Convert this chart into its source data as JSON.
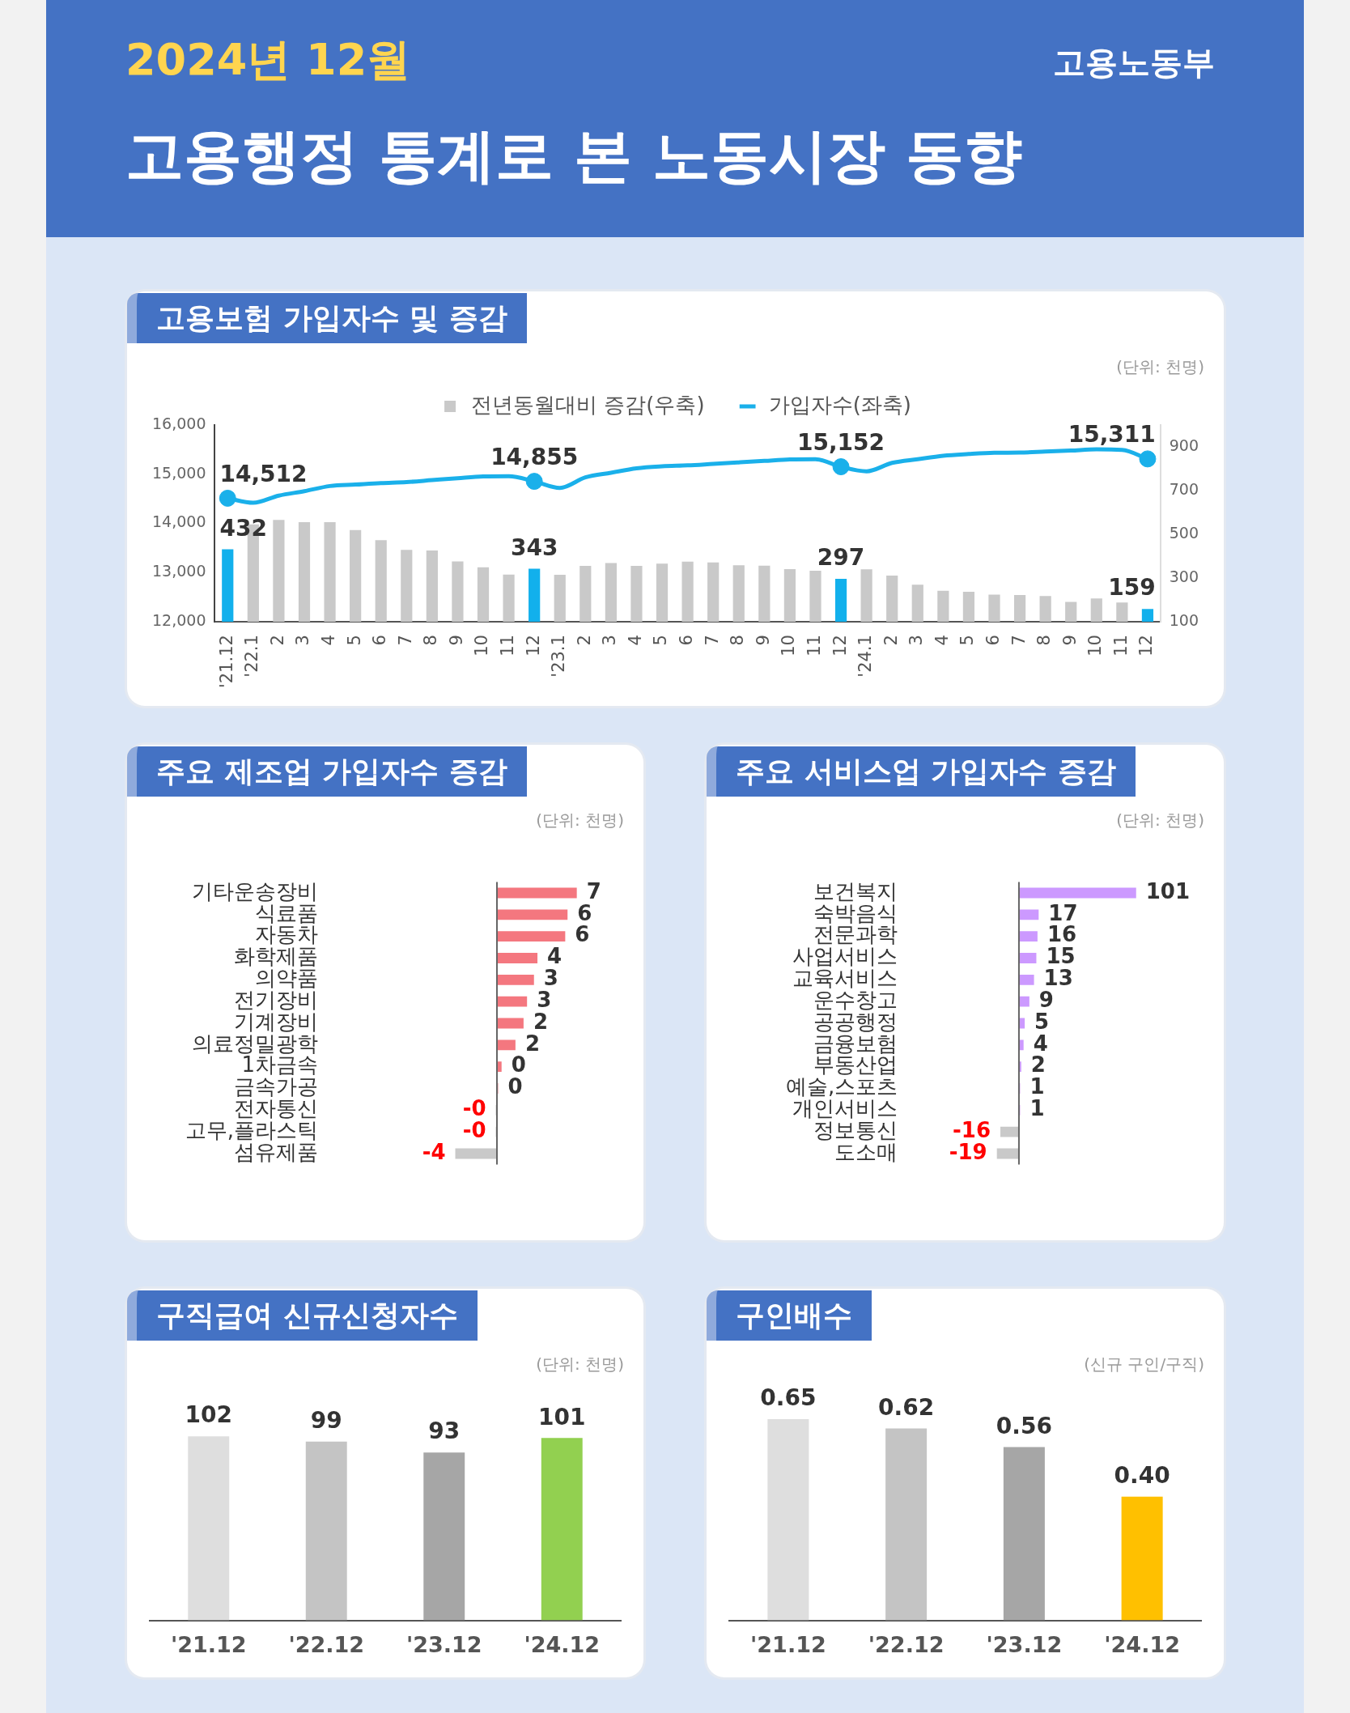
{
  "chart_data": [
    {
      "type": "other",
      "title": "고용행정 통계로 본 노동시장 동향",
      "subtitle": "2024년 12월",
      "annotations": [
        "고용노동부"
      ]
    },
    {
      "type": "bar",
      "title": "고용보험 가입자수 및 증감",
      "annotations": [
        "(단위: 천명)"
      ],
      "categories": [
        "'21.12",
        "'22.1",
        "2",
        "3",
        "4",
        "5",
        "6",
        "7",
        "8",
        "9",
        "10",
        "11",
        "12",
        "'23.1",
        "2",
        "3",
        "4",
        "5",
        "6",
        "7",
        "8",
        "9",
        "10",
        "11",
        "12",
        "'24.1",
        "2",
        "3",
        "4",
        "5",
        "6",
        "7",
        "8",
        "9",
        "10",
        "11",
        "12"
      ],
      "series": [
        {
          "name": "전년동월대비 증감(우축)",
          "type": "bar",
          "axis": "y2",
          "color": "#c9c9c9",
          "colors": [
            "#12b0ec",
            "#c9c9c9",
            "#c9c9c9",
            "#c9c9c9",
            "#c9c9c9",
            "#c9c9c9",
            "#c9c9c9",
            "#c9c9c9",
            "#c9c9c9",
            "#c9c9c9",
            "#c9c9c9",
            "#c9c9c9",
            "#12b0ec",
            "#c9c9c9",
            "#c9c9c9",
            "#c9c9c9",
            "#c9c9c9",
            "#c9c9c9",
            "#c9c9c9",
            "#c9c9c9",
            "#c9c9c9",
            "#c9c9c9",
            "#c9c9c9",
            "#c9c9c9",
            "#12b0ec",
            "#c9c9c9",
            "#c9c9c9",
            "#c9c9c9",
            "#c9c9c9",
            "#c9c9c9",
            "#c9c9c9",
            "#c9c9c9",
            "#c9c9c9",
            "#c9c9c9",
            "#c9c9c9",
            "#c9c9c9",
            "#12b0ec"
          ],
          "values": [
            432,
            546,
            566,
            556,
            556,
            520,
            473,
            429,
            426,
            376,
            349,
            316,
            343,
            315,
            356,
            369,
            356,
            366,
            375,
            372,
            359,
            357,
            341,
            334,
            297,
            340,
            311,
            270,
            242,
            237,
            224,
            223,
            218,
            191,
            207,
            188,
            159
          ],
          "value_labels": [
            "432",
            null,
            null,
            null,
            null,
            null,
            null,
            null,
            null,
            null,
            null,
            null,
            "343",
            null,
            null,
            null,
            null,
            null,
            null,
            null,
            null,
            null,
            null,
            null,
            "297",
            null,
            null,
            null,
            null,
            null,
            null,
            null,
            null,
            null,
            null,
            null,
            "159"
          ]
        },
        {
          "name": "가입자수(좌축)",
          "type": "line",
          "axis": "y",
          "color": "#1ab0ea",
          "marker": "none",
          "values": [
            14512,
            14420,
            14565,
            14655,
            14760,
            14790,
            14820,
            14840,
            14880,
            14920,
            14955,
            14960,
            14855,
            14720,
            14935,
            15030,
            15120,
            15160,
            15180,
            15210,
            15240,
            15270,
            15300,
            15305,
            15152,
            15060,
            15230,
            15305,
            15375,
            15410,
            15435,
            15440,
            15460,
            15480,
            15505,
            15495,
            15311
          ]
        },
        {
          "type": "scatter",
          "axis": "y",
          "color": "#1ab0ea",
          "marker": "circle",
          "values": [
            14512,
            null,
            null,
            null,
            null,
            null,
            null,
            null,
            null,
            null,
            null,
            null,
            14855,
            null,
            null,
            null,
            null,
            null,
            null,
            null,
            null,
            null,
            null,
            null,
            15152,
            null,
            null,
            null,
            null,
            null,
            null,
            null,
            null,
            null,
            null,
            null,
            15311
          ],
          "value_labels": [
            "14,512",
            null,
            null,
            null,
            null,
            null,
            null,
            null,
            null,
            null,
            null,
            null,
            "14,855",
            null,
            null,
            null,
            null,
            null,
            null,
            null,
            null,
            null,
            null,
            null,
            "15,152",
            null,
            null,
            null,
            null,
            null,
            null,
            null,
            null,
            null,
            null,
            null,
            "15,311"
          ]
        }
      ],
      "ylim": [
        12000,
        16000
      ],
      "yticks": [
        {
          "value": 12000,
          "label": "12,000"
        },
        {
          "value": 13000,
          "label": "13,000"
        },
        {
          "value": 14000,
          "label": "14,000"
        },
        {
          "value": 15000,
          "label": "15,000"
        },
        {
          "value": 16000,
          "label": "16,000"
        }
      ],
      "y2lim": [
        100,
        1000
      ],
      "y2ticks": [
        100,
        300,
        500,
        700,
        900
      ],
      "legend": "top"
    },
    {
      "type": "bar",
      "orientation": "horizontal",
      "title": "주요 제조업 가입자수 증감",
      "annotations": [
        "(단위: 천명)"
      ],
      "categories": [
        "기타운송장비",
        "식료품",
        "자동차",
        "화학제품",
        "의약품",
        "전기장비",
        "기계장비",
        "의료정밀광학",
        "1차금속",
        "금속가공",
        "전자통신",
        "고무,플라스틱",
        "섬유제품"
      ],
      "values": [
        6.9,
        6.1,
        5.9,
        3.5,
        3.2,
        2.6,
        2.3,
        1.6,
        0.4,
        0.1,
        -0.1,
        -0.1,
        -3.6
      ],
      "colors": [
        "#f4777f",
        "#f4777f",
        "#f4777f",
        "#f4777f",
        "#f4777f",
        "#f4777f",
        "#f4777f",
        "#f4777f",
        "#f4777f",
        "#f4777f",
        "#c9c9c9",
        "#c9c9c9",
        "#c9c9c9"
      ],
      "value_labels": [
        "7",
        "6",
        "6",
        "4",
        "3",
        "3",
        "2",
        "2",
        "0",
        "0",
        "-0",
        "-0",
        "-4"
      ]
    },
    {
      "type": "bar",
      "orientation": "horizontal",
      "title": "주요 서비스업 가입자수 증감",
      "annotations": [
        "(단위: 천명)"
      ],
      "categories": [
        "보건복지",
        "숙박음식",
        "전문과학",
        "사업서비스",
        "교육서비스",
        "운수창고",
        "공공행정",
        "금융보험",
        "부동산업",
        "예술,스포츠",
        "개인서비스",
        "정보통신",
        "도소매"
      ],
      "values": [
        101,
        17,
        16,
        15,
        13,
        9,
        5,
        4,
        2,
        1,
        1,
        -16,
        -19
      ],
      "colors": [
        "#cc99ff",
        "#cc99ff",
        "#cc99ff",
        "#cc99ff",
        "#cc99ff",
        "#cc99ff",
        "#cc99ff",
        "#cc99ff",
        "#cc99ff",
        "#cc99ff",
        "#cc99ff",
        "#c9c9c9",
        "#c9c9c9"
      ],
      "data_labels": true
    },
    {
      "type": "bar",
      "title": "구직급여 신규신청자수",
      "annotations": [
        "(단위: 천명)"
      ],
      "categories": [
        "'21.12",
        "'22.12",
        "'23.12",
        "'24.12"
      ],
      "values": [
        102,
        99,
        93,
        101
      ],
      "colors": [
        "#dedede",
        "#c4c4c4",
        "#a6a6a6",
        "#92d050"
      ],
      "tick_labels": "x",
      "data_labels": true
    },
    {
      "type": "bar",
      "title": "구인배수",
      "annotations": [
        "(신규 구인/구직)"
      ],
      "categories": [
        "'21.12",
        "'22.12",
        "'23.12",
        "'24.12"
      ],
      "values": [
        0.65,
        0.62,
        0.56,
        0.4
      ],
      "colors": [
        "#dedede",
        "#c4c4c4",
        "#a6a6a6",
        "#ffc000"
      ],
      "tick_labels": "x",
      "value_labels": [
        "0.65",
        "0.62",
        "0.56",
        "0.40"
      ]
    }
  ]
}
